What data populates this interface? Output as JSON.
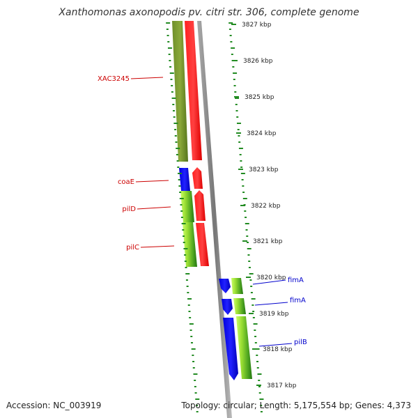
{
  "title": "Xanthomonas axonopodis pv. citri str. 306, complete genome",
  "accession_label": "Accession: NC_003919",
  "summary_label": "Topology: circular; Length: 5,175,554 bp; Genes: 4,373",
  "scale_labels": [
    "3827 kbp",
    "3826 kbp",
    "3825 kbp",
    "3824 kbp",
    "3823 kbp",
    "3822 kbp",
    "3821 kbp",
    "3820 kbp",
    "3819 kbp",
    "3818 kbp",
    "3817 kbp"
  ],
  "genes": {
    "left": [
      "XAC3245",
      "coaE",
      "pilD",
      "pilC"
    ],
    "right": [
      "fimA",
      "fimA",
      "pilB"
    ]
  },
  "colors": {
    "label_left": "#cc0000",
    "label_right": "#0000cc",
    "tick": "#228b22",
    "red_gene": "#ff0000",
    "blue_gene": "#0000ee",
    "green_gene": "#66aa22",
    "olive_gene": "#6b8e23",
    "backbone": "#888888"
  }
}
